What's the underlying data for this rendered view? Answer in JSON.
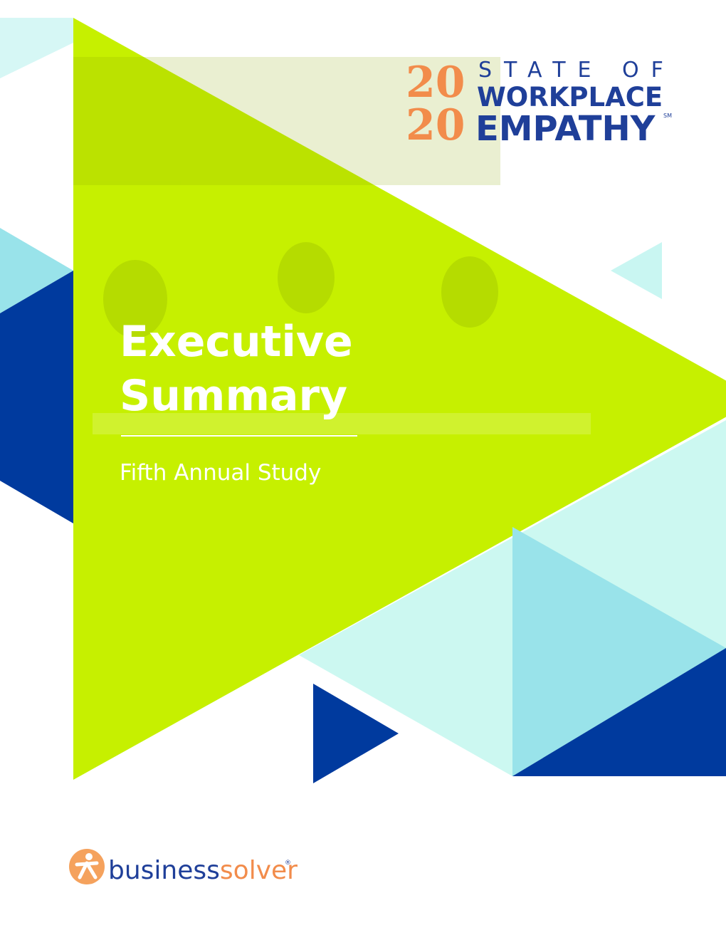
{
  "logo": {
    "year_top": "20",
    "year_bottom": "20",
    "line1": "STATE OF",
    "line2": "WORKPLACE",
    "line3": "EMPATHY",
    "mark": "SM"
  },
  "title": {
    "lines": [
      "Executive",
      "Summary"
    ]
  },
  "subtitle": "Fifth Annual Study",
  "brand": {
    "part1": "business",
    "part2": "solver",
    "mark": "®"
  }
}
